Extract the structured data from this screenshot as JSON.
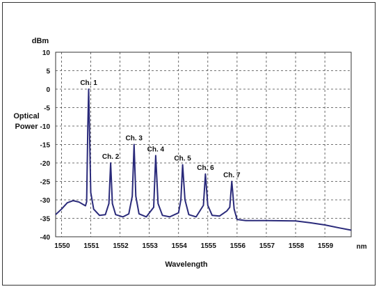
{
  "chart_data": {
    "type": "line",
    "xlabel": "Wavelength",
    "x_unit": "nm",
    "ylabel_lines": [
      "Optical",
      "Power"
    ],
    "y_unit": "dBm",
    "xlim": [
      1549.8,
      1559.9
    ],
    "ylim": [
      -40,
      10
    ],
    "grid": true,
    "x_ticks": [
      1550,
      1551,
      1552,
      1553,
      1554,
      1555,
      1556,
      1557,
      1558,
      1559
    ],
    "y_ticks": [
      10,
      5,
      0,
      -5,
      -10,
      -15,
      -20,
      -25,
      -30,
      -35,
      -40
    ],
    "series": [
      {
        "color": "#2a2a7a",
        "points": [
          [
            1549.8,
            -34.0
          ],
          [
            1550.0,
            -32.5
          ],
          [
            1550.2,
            -30.8
          ],
          [
            1550.4,
            -30.2
          ],
          [
            1550.6,
            -30.6
          ],
          [
            1550.75,
            -31.3
          ],
          [
            1550.82,
            -31.6
          ],
          [
            1550.86,
            -30.5
          ],
          [
            1550.9,
            -10.0
          ],
          [
            1550.93,
            0.0
          ],
          [
            1550.96,
            -12.0
          ],
          [
            1551.0,
            -28.0
          ],
          [
            1551.1,
            -32.5
          ],
          [
            1551.3,
            -34.2
          ],
          [
            1551.5,
            -34.0
          ],
          [
            1551.62,
            -31.0
          ],
          [
            1551.68,
            -20.0
          ],
          [
            1551.74,
            -31.0
          ],
          [
            1551.85,
            -34.0
          ],
          [
            1552.1,
            -34.6
          ],
          [
            1552.3,
            -33.8
          ],
          [
            1552.42,
            -29.0
          ],
          [
            1552.48,
            -15.0
          ],
          [
            1552.54,
            -29.0
          ],
          [
            1552.65,
            -33.8
          ],
          [
            1552.9,
            -34.6
          ],
          [
            1553.15,
            -32.0
          ],
          [
            1553.22,
            -18.0
          ],
          [
            1553.3,
            -31.0
          ],
          [
            1553.45,
            -34.2
          ],
          [
            1553.7,
            -34.6
          ],
          [
            1554.0,
            -33.5
          ],
          [
            1554.08,
            -30.0
          ],
          [
            1554.14,
            -20.5
          ],
          [
            1554.22,
            -30.0
          ],
          [
            1554.35,
            -34.0
          ],
          [
            1554.6,
            -34.6
          ],
          [
            1554.85,
            -31.5
          ],
          [
            1554.92,
            -23.0
          ],
          [
            1555.0,
            -31.5
          ],
          [
            1555.15,
            -34.2
          ],
          [
            1555.4,
            -34.4
          ],
          [
            1555.65,
            -33.0
          ],
          [
            1555.75,
            -32.0
          ],
          [
            1555.82,
            -25.0
          ],
          [
            1555.9,
            -32.5
          ],
          [
            1556.0,
            -35.3
          ],
          [
            1556.3,
            -35.6
          ],
          [
            1557.0,
            -35.6
          ],
          [
            1558.0,
            -35.7
          ],
          [
            1558.5,
            -36.2
          ],
          [
            1559.0,
            -36.8
          ],
          [
            1559.5,
            -37.6
          ],
          [
            1559.9,
            -38.2
          ]
        ]
      }
    ],
    "annotations": [
      {
        "text": "Ch. 1",
        "x": 1550.93,
        "y": 0.0
      },
      {
        "text": "Ch. 2",
        "x": 1551.68,
        "y": -20.0
      },
      {
        "text": "Ch. 3",
        "x": 1552.48,
        "y": -15.0
      },
      {
        "text": "Ch. 4",
        "x": 1553.22,
        "y": -18.0
      },
      {
        "text": "Ch. 5",
        "x": 1554.14,
        "y": -20.5
      },
      {
        "text": "Ch. 6",
        "x": 1554.92,
        "y": -23.0
      },
      {
        "text": "Ch. 7",
        "x": 1555.82,
        "y": -25.0
      }
    ]
  }
}
